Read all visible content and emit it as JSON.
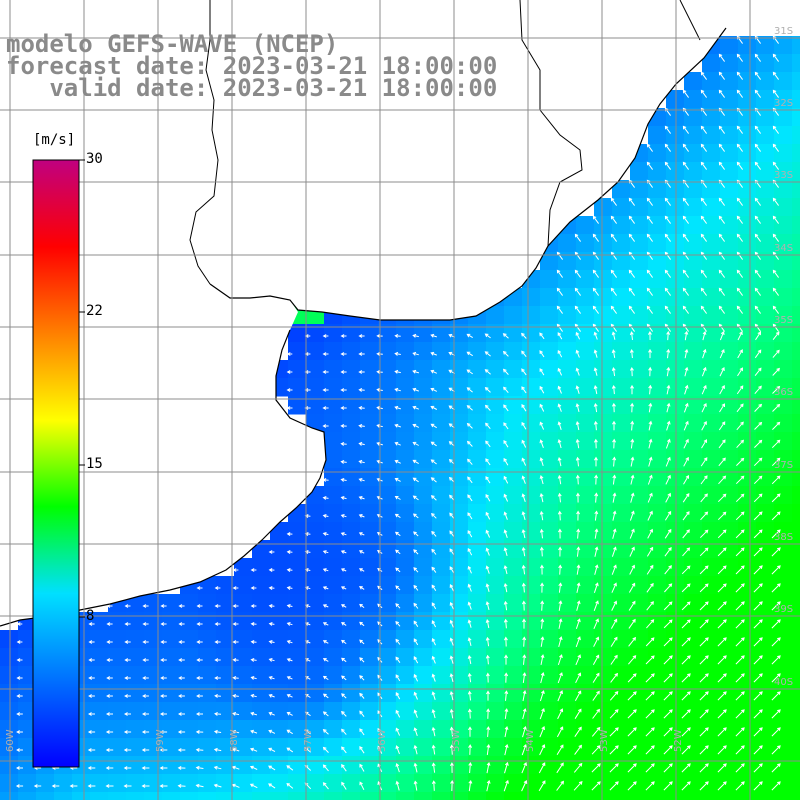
{
  "header": {
    "model_line": "modelo GEFS-WAVE (NCEP)",
    "forecast_line": "forecast date: 2023-03-21 18:00:00",
    "valid_line": "   valid date: 2023-03-21 18:00:00"
  },
  "colorbar": {
    "unit": "[m/s]",
    "ticks": [
      "30",
      "22",
      "15",
      "8"
    ],
    "range": [
      0,
      30
    ],
    "colors": [
      "#0000ff",
      "#0070ff",
      "#00e0ff",
      "#00ff00",
      "#ffff00",
      "#ff8000",
      "#ff0000",
      "#c00080"
    ]
  },
  "map": {
    "lon_labels": [
      "60W",
      "59W",
      "58W",
      "57W",
      "56W",
      "55W",
      "54W",
      "53W",
      "52W"
    ],
    "lat_labels": [
      "31S",
      "32S",
      "33S",
      "34S",
      "35S",
      "36S",
      "37S",
      "38S",
      "39S",
      "40S"
    ],
    "land_color": "#ffffff",
    "grid_color": "#8c8c8c",
    "coast_color": "#000000"
  }
}
